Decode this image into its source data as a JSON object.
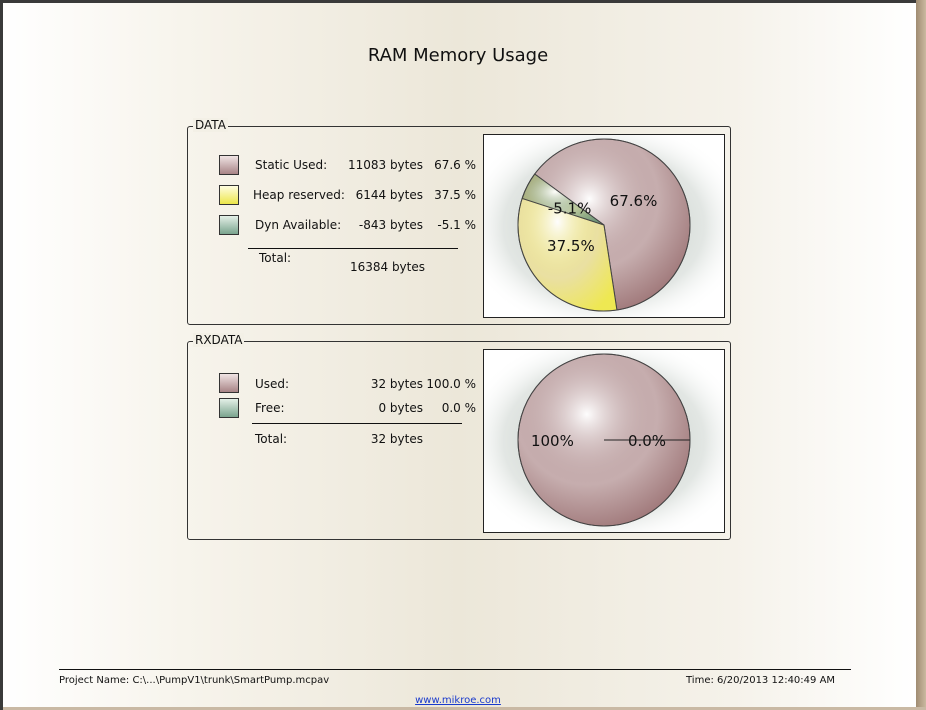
{
  "report": {
    "title": "RAM Memory Usage"
  },
  "data_group": {
    "label": "DATA",
    "rows": [
      {
        "label": "Static Used:",
        "value": "11083 bytes",
        "percent": "67.6 %",
        "color": "#8a5a5c"
      },
      {
        "label": "Heap reserved:",
        "value": "6144 bytes",
        "percent": "37.5 %",
        "color": "#f0ea3a"
      },
      {
        "label": "Dyn Available:",
        "value": "-843 bytes",
        "percent": "-5.1 %",
        "color": "#5c8a74"
      }
    ],
    "total_label": "Total:",
    "total_value": "16384 bytes"
  },
  "rxdata_group": {
    "label": "RXDATA",
    "rows": [
      {
        "label": "Used:",
        "value": "32 bytes",
        "percent": "100.0 %",
        "color": "#8a5a5c"
      },
      {
        "label": "Free:",
        "value": "0 bytes",
        "percent": "0.0 %",
        "color": "#5c8a74"
      }
    ],
    "total_label": "Total:",
    "total_value": "32 bytes"
  },
  "chart_data": [
    {
      "type": "pie",
      "title": "",
      "categories": [
        "Static Used",
        "Heap reserved",
        "Dyn Available"
      ],
      "values": [
        67.6,
        37.5,
        -5.1
      ],
      "labels": [
        "67.6%",
        "37.5%",
        "-5.1%"
      ],
      "colors": [
        "#8a5a5c",
        "#f0ea3a",
        "#5c8a74"
      ]
    },
    {
      "type": "pie",
      "title": "",
      "categories": [
        "Used",
        "Free"
      ],
      "values": [
        100.0,
        0.0
      ],
      "labels": [
        "100%",
        "0.0%"
      ],
      "colors": [
        "#8a5a5c",
        "#5c8a74"
      ]
    }
  ],
  "footer": {
    "project": "Project Name: C:\\...\\PumpV1\\trunk\\SmartPump.mcpav",
    "time": "Time: 6/20/2013 12:40:49 AM",
    "link": "www.mikroe.com"
  }
}
